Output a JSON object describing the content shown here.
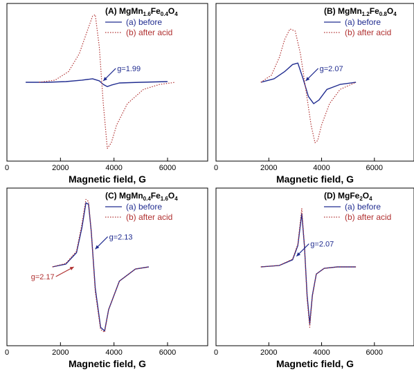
{
  "colors": {
    "before": "#1f2b8f",
    "after_acid": "#b03030",
    "axis": "#000000"
  },
  "chart_data": [
    {
      "type": "line",
      "title": "(A) MgMn1.6Fe0.4O4",
      "title_parts": [
        {
          "t": "(A) MgMn",
          "sub": false
        },
        {
          "t": "1.6",
          "sub": true
        },
        {
          "t": "Fe",
          "sub": false
        },
        {
          "t": "0.4",
          "sub": true
        },
        {
          "t": "O",
          "sub": false
        },
        {
          "t": "4",
          "sub": true
        }
      ],
      "xlabel": "Magnetic field, G",
      "xticks": [
        0,
        2000,
        4000,
        6000
      ],
      "xlim": [
        0,
        7500
      ],
      "ylim": [
        -1.05,
        1.05
      ],
      "legend": [
        "(a) before",
        "(b) after acid"
      ],
      "legend_position": "top-right",
      "annotations": [
        {
          "text": "g=1.99",
          "x": 3600,
          "y": 0.02,
          "series": "before"
        }
      ],
      "series": [
        {
          "name": "(a) before",
          "style": "solid",
          "x": [
            700,
            1500,
            2200,
            2800,
            3200,
            3450,
            3600,
            3750,
            3900,
            4200,
            5000,
            6000
          ],
          "y": [
            0.0,
            0.0,
            0.01,
            0.03,
            0.05,
            0.02,
            -0.03,
            -0.06,
            -0.04,
            -0.01,
            0.0,
            0.01
          ]
        },
        {
          "name": "(b) after acid",
          "style": "dotted",
          "x": [
            1200,
            1800,
            2300,
            2700,
            3000,
            3200,
            3300,
            3450,
            3600,
            3750,
            3900,
            4100,
            4500,
            5100,
            5700,
            6300
          ],
          "y": [
            0.0,
            0.03,
            0.15,
            0.4,
            0.72,
            0.93,
            0.95,
            0.5,
            -0.3,
            -0.93,
            -0.85,
            -0.6,
            -0.3,
            -0.1,
            -0.03,
            0.0
          ]
        }
      ]
    },
    {
      "type": "line",
      "title": "(B) MgMn1.2Fe0.8O4",
      "title_parts": [
        {
          "t": "(B) MgMn",
          "sub": false
        },
        {
          "t": "1.2",
          "sub": true
        },
        {
          "t": "Fe",
          "sub": false
        },
        {
          "t": "0.8",
          "sub": true
        },
        {
          "t": "O",
          "sub": false
        },
        {
          "t": "4",
          "sub": true
        }
      ],
      "xlabel": "Magnetic field, G",
      "xticks": [
        0,
        2000,
        4000,
        6000
      ],
      "xlim": [
        0,
        7500
      ],
      "ylim": [
        -1.05,
        1.05
      ],
      "legend": [
        "(a) before",
        "(b) after acid"
      ],
      "legend_position": "top-right",
      "annotations": [
        {
          "text": "g=2.07",
          "x": 3400,
          "y": 0.02,
          "series": "before"
        }
      ],
      "series": [
        {
          "name": "(a) before",
          "style": "solid",
          "x": [
            1700,
            2200,
            2600,
            2900,
            3100,
            3300,
            3500,
            3700,
            3900,
            4200,
            4700,
            5300
          ],
          "y": [
            0.0,
            0.05,
            0.15,
            0.25,
            0.27,
            0.05,
            -0.2,
            -0.3,
            -0.25,
            -0.1,
            -0.03,
            0.0
          ]
        },
        {
          "name": "(b) after acid",
          "style": "dotted",
          "x": [
            1700,
            2100,
            2400,
            2600,
            2800,
            3000,
            3200,
            3400,
            3600,
            3750,
            3850,
            4000,
            4300,
            4700,
            5300
          ],
          "y": [
            0.0,
            0.1,
            0.35,
            0.6,
            0.75,
            0.72,
            0.4,
            -0.1,
            -0.6,
            -0.85,
            -0.82,
            -0.6,
            -0.3,
            -0.1,
            0.0
          ]
        }
      ]
    },
    {
      "type": "line",
      "title": "(C) MgMn0.4Fe1.6O4",
      "title_parts": [
        {
          "t": "(C) MgMn",
          "sub": false
        },
        {
          "t": "0.4",
          "sub": true
        },
        {
          "t": "Fe",
          "sub": false
        },
        {
          "t": "1.6",
          "sub": true
        },
        {
          "t": "O",
          "sub": false
        },
        {
          "t": "4",
          "sub": true
        }
      ],
      "xlabel": "Magnetic field, G",
      "xticks": [
        0,
        2000,
        4000,
        6000
      ],
      "xlim": [
        0,
        7500
      ],
      "ylim": [
        -1.05,
        1.05
      ],
      "legend": [
        "(a) before",
        "(b) after acid"
      ],
      "legend_position": "top-right",
      "annotations": [
        {
          "text": "g=2.13",
          "x": 3300,
          "y": 0.25,
          "series": "before"
        },
        {
          "text": "g=2.17",
          "x": 2500,
          "y": 0.0,
          "series": "after_acid"
        }
      ],
      "series": [
        {
          "name": "(a) before",
          "style": "solid",
          "x": [
            1700,
            2200,
            2600,
            2800,
            2950,
            3050,
            3150,
            3300,
            3500,
            3650,
            3800,
            4200,
            4800,
            5300
          ],
          "y": [
            0.0,
            0.04,
            0.2,
            0.55,
            0.9,
            0.88,
            0.5,
            -0.3,
            -0.85,
            -0.9,
            -0.6,
            -0.2,
            -0.03,
            0.0
          ]
        },
        {
          "name": "(b) after acid",
          "style": "dotted",
          "x": [
            1700,
            2200,
            2600,
            2800,
            2950,
            3050,
            3150,
            3300,
            3500,
            3650,
            3800,
            4200,
            4800,
            5300
          ],
          "y": [
            0.0,
            0.05,
            0.22,
            0.6,
            0.95,
            0.92,
            0.5,
            -0.35,
            -0.88,
            -0.92,
            -0.6,
            -0.2,
            -0.03,
            0.0
          ]
        }
      ]
    },
    {
      "type": "line",
      "title": "(D) MgFe2O4",
      "title_parts": [
        {
          "t": "(D) MgFe",
          "sub": false
        },
        {
          "t": "2",
          "sub": true
        },
        {
          "t": "O",
          "sub": false
        },
        {
          "t": "4",
          "sub": true
        }
      ],
      "xlabel": "Magnetic field, G",
      "xticks": [
        0,
        2000,
        4000,
        6000
      ],
      "xlim": [
        0,
        7500
      ],
      "ylim": [
        -1.05,
        1.05
      ],
      "legend": [
        "(a) before",
        "(b) after acid"
      ],
      "legend_position": "top-right",
      "annotations": [
        {
          "text": "g=2.07",
          "x": 3050,
          "y": 0.15,
          "series": "before"
        }
      ],
      "series": [
        {
          "name": "(a) before",
          "style": "solid",
          "x": [
            1700,
            2400,
            2900,
            3100,
            3250,
            3350,
            3450,
            3550,
            3650,
            3800,
            4100,
            4600,
            5300
          ],
          "y": [
            0.0,
            0.02,
            0.1,
            0.3,
            0.75,
            0.3,
            -0.4,
            -0.8,
            -0.4,
            -0.1,
            -0.02,
            0.0,
            0.0
          ]
        },
        {
          "name": "(b) after acid",
          "style": "dotted",
          "x": [
            1700,
            2400,
            2900,
            3100,
            3250,
            3350,
            3450,
            3550,
            3650,
            3800,
            4100,
            4600,
            5300
          ],
          "y": [
            0.0,
            0.02,
            0.11,
            0.32,
            0.82,
            0.3,
            -0.45,
            -0.85,
            -0.42,
            -0.1,
            -0.02,
            0.0,
            0.0
          ]
        }
      ]
    }
  ]
}
